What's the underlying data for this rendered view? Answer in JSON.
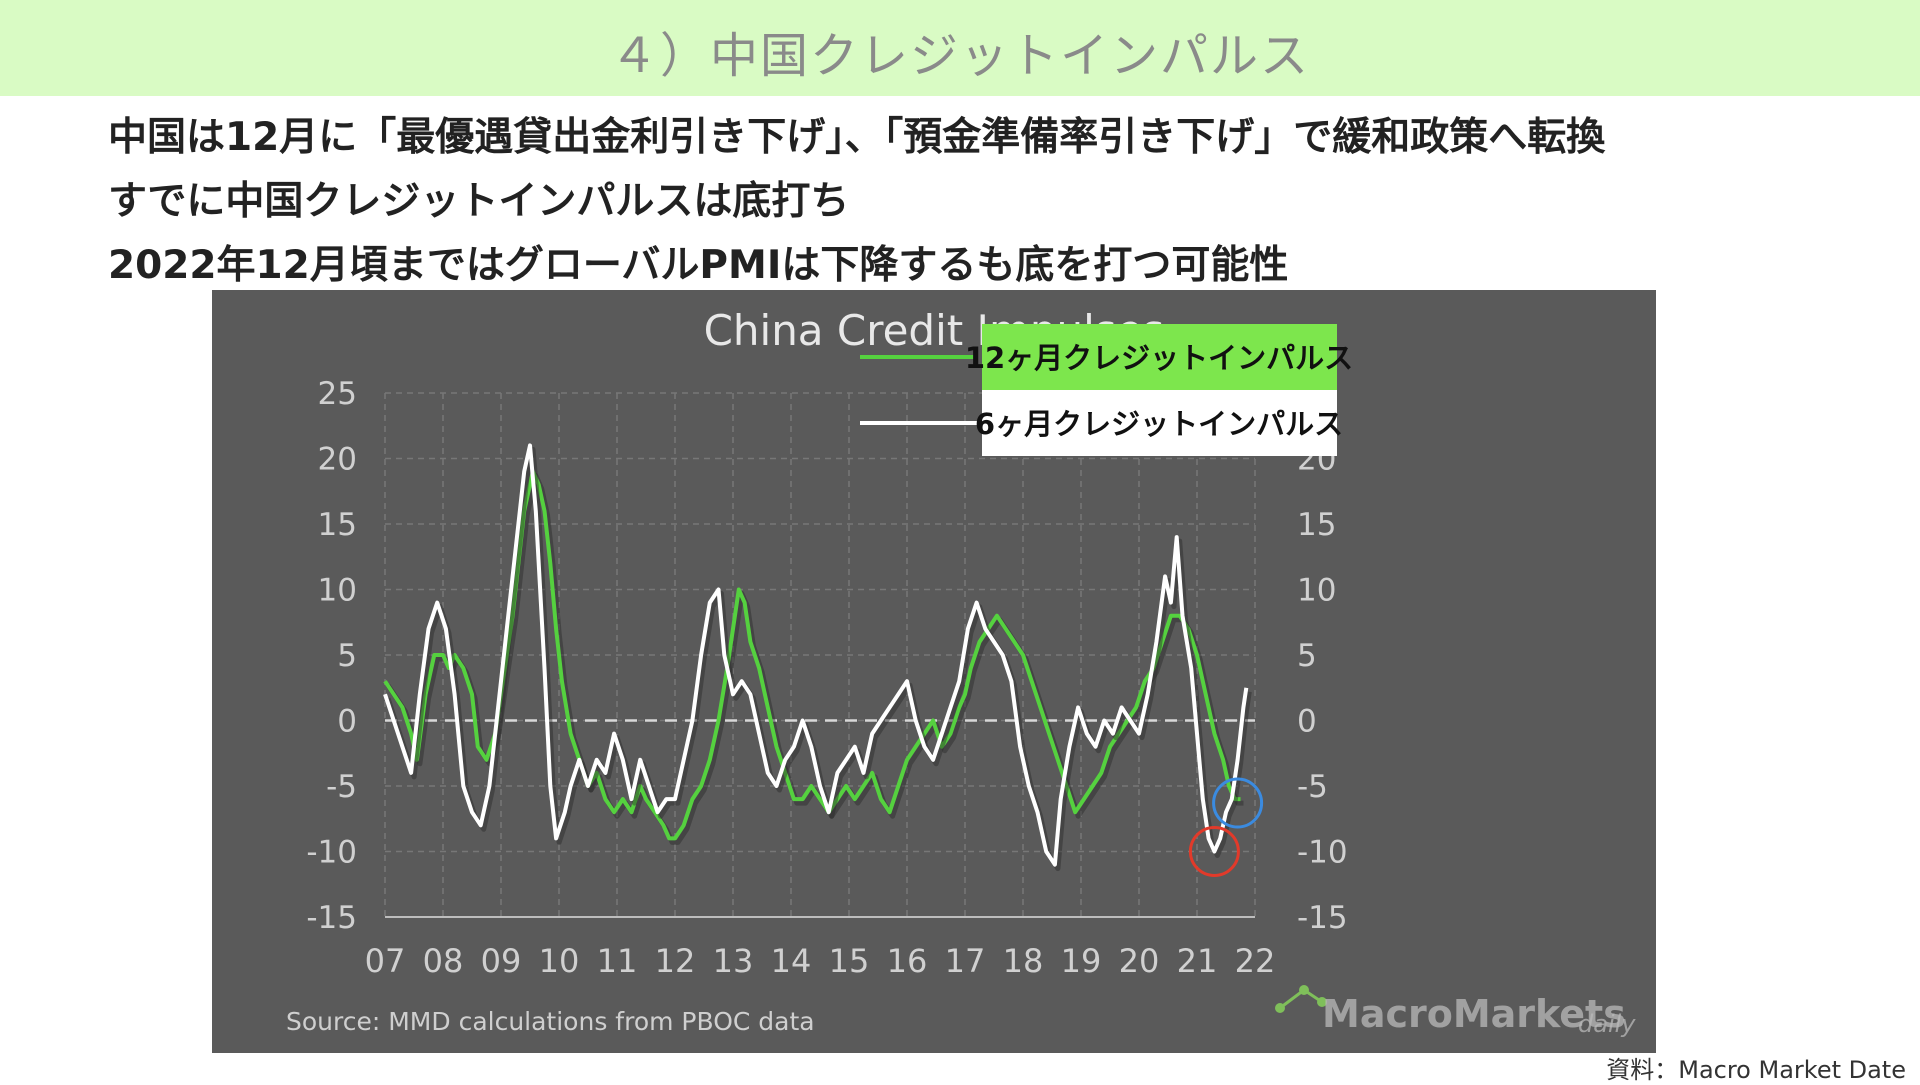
{
  "slide": {
    "title": "４）中国クレジットインパルス",
    "bullets": [
      "中国は12月に「最優遇貸出金利引き下げ」、「預金準備率引き下げ」で緩和政策へ転換",
      "すでに中国クレジットインパルスは底打ち",
      "2022年12月頃まではグローバルPMIは下降するも底を打つ可能性"
    ],
    "source_caption": "資料：Macro Market Date"
  },
  "chart_data": {
    "type": "line",
    "title": "China Credit Impulses",
    "source": "Source:  MMD calculations  from PBOC data",
    "watermark": {
      "brand": "MacroMarkets",
      "suffix": "daily"
    },
    "ylim": [
      -15,
      25
    ],
    "yticks": [
      25,
      20,
      15,
      10,
      5,
      0,
      -5,
      -10,
      -15
    ],
    "xlim": [
      2007,
      2022
    ],
    "xticks": [
      2007,
      2008,
      2009,
      2010,
      2011,
      2012,
      2013,
      2014,
      2015,
      2016,
      2017,
      2018,
      2019,
      2020,
      2021,
      2022
    ],
    "xtick_labels": [
      "07",
      "08",
      "09",
      "10",
      "11",
      "12",
      "13",
      "14",
      "15",
      "16",
      "17",
      "18",
      "19",
      "20",
      "21",
      "22"
    ],
    "grid": true,
    "zero_line": "dashed",
    "legend_position": "top-right",
    "series": [
      {
        "name": "12ヶ月クレジットインパルス",
        "color": "#55d13f",
        "points": [
          [
            2007.0,
            3
          ],
          [
            2007.15,
            2
          ],
          [
            2007.3,
            1
          ],
          [
            2007.45,
            -1
          ],
          [
            2007.55,
            -3
          ],
          [
            2007.7,
            2
          ],
          [
            2007.85,
            5
          ],
          [
            2008.0,
            5
          ],
          [
            2008.1,
            4
          ],
          [
            2008.2,
            5
          ],
          [
            2008.35,
            4
          ],
          [
            2008.5,
            2
          ],
          [
            2008.6,
            -2
          ],
          [
            2008.75,
            -3
          ],
          [
            2008.9,
            -1
          ],
          [
            2009.0,
            2
          ],
          [
            2009.1,
            5
          ],
          [
            2009.2,
            8
          ],
          [
            2009.3,
            12
          ],
          [
            2009.4,
            16
          ],
          [
            2009.5,
            18
          ],
          [
            2009.55,
            19
          ],
          [
            2009.65,
            18
          ],
          [
            2009.75,
            16
          ],
          [
            2009.85,
            12
          ],
          [
            2009.95,
            7
          ],
          [
            2010.05,
            3
          ],
          [
            2010.2,
            -1
          ],
          [
            2010.35,
            -3
          ],
          [
            2010.5,
            -5
          ],
          [
            2010.65,
            -4
          ],
          [
            2010.8,
            -6
          ],
          [
            2010.95,
            -7
          ],
          [
            2011.1,
            -6
          ],
          [
            2011.25,
            -7
          ],
          [
            2011.4,
            -5
          ],
          [
            2011.5,
            -6
          ],
          [
            2011.65,
            -7
          ],
          [
            2011.8,
            -8
          ],
          [
            2011.9,
            -9
          ],
          [
            2012.0,
            -9
          ],
          [
            2012.15,
            -8
          ],
          [
            2012.3,
            -6
          ],
          [
            2012.45,
            -5
          ],
          [
            2012.6,
            -3
          ],
          [
            2012.75,
            0
          ],
          [
            2012.9,
            4
          ],
          [
            2013.0,
            7
          ],
          [
            2013.1,
            10
          ],
          [
            2013.2,
            9
          ],
          [
            2013.3,
            6
          ],
          [
            2013.45,
            4
          ],
          [
            2013.6,
            1
          ],
          [
            2013.75,
            -2
          ],
          [
            2013.9,
            -4
          ],
          [
            2014.05,
            -6
          ],
          [
            2014.2,
            -6
          ],
          [
            2014.35,
            -5
          ],
          [
            2014.5,
            -6
          ],
          [
            2014.65,
            -7
          ],
          [
            2014.8,
            -6
          ],
          [
            2014.95,
            -5
          ],
          [
            2015.1,
            -6
          ],
          [
            2015.25,
            -5
          ],
          [
            2015.4,
            -4
          ],
          [
            2015.55,
            -6
          ],
          [
            2015.7,
            -7
          ],
          [
            2015.85,
            -5
          ],
          [
            2016.0,
            -3
          ],
          [
            2016.15,
            -2
          ],
          [
            2016.3,
            -1
          ],
          [
            2016.45,
            0
          ],
          [
            2016.6,
            -2
          ],
          [
            2016.75,
            -1
          ],
          [
            2016.9,
            1
          ],
          [
            2017.0,
            2
          ],
          [
            2017.1,
            4
          ],
          [
            2017.25,
            6
          ],
          [
            2017.4,
            7
          ],
          [
            2017.55,
            8
          ],
          [
            2017.7,
            7
          ],
          [
            2017.85,
            6
          ],
          [
            2018.0,
            5
          ],
          [
            2018.15,
            3
          ],
          [
            2018.3,
            1
          ],
          [
            2018.45,
            -1
          ],
          [
            2018.6,
            -3
          ],
          [
            2018.75,
            -5
          ],
          [
            2018.9,
            -7
          ],
          [
            2019.05,
            -6
          ],
          [
            2019.2,
            -5
          ],
          [
            2019.35,
            -4
          ],
          [
            2019.5,
            -2
          ],
          [
            2019.65,
            -1
          ],
          [
            2019.8,
            0
          ],
          [
            2019.95,
            1
          ],
          [
            2020.1,
            3
          ],
          [
            2020.25,
            4
          ],
          [
            2020.4,
            6
          ],
          [
            2020.55,
            8
          ],
          [
            2020.7,
            8
          ],
          [
            2020.85,
            7
          ],
          [
            2021.0,
            5
          ],
          [
            2021.15,
            2
          ],
          [
            2021.3,
            -1
          ],
          [
            2021.45,
            -3
          ],
          [
            2021.55,
            -5
          ],
          [
            2021.65,
            -6
          ],
          [
            2021.75,
            -6
          ]
        ]
      },
      {
        "name": "6ヶ月クレジットインパルス",
        "color": "#ffffff",
        "points": [
          [
            2007.0,
            2
          ],
          [
            2007.15,
            0
          ],
          [
            2007.3,
            -2
          ],
          [
            2007.45,
            -4
          ],
          [
            2007.6,
            2
          ],
          [
            2007.75,
            7
          ],
          [
            2007.9,
            9
          ],
          [
            2008.05,
            7
          ],
          [
            2008.2,
            2
          ],
          [
            2008.35,
            -5
          ],
          [
            2008.5,
            -7
          ],
          [
            2008.65,
            -8
          ],
          [
            2008.8,
            -5
          ],
          [
            2008.95,
            1
          ],
          [
            2009.1,
            7
          ],
          [
            2009.25,
            13
          ],
          [
            2009.4,
            19
          ],
          [
            2009.5,
            21
          ],
          [
            2009.6,
            16
          ],
          [
            2009.75,
            4
          ],
          [
            2009.85,
            -5
          ],
          [
            2009.95,
            -9
          ],
          [
            2010.1,
            -7
          ],
          [
            2010.2,
            -5
          ],
          [
            2010.35,
            -3
          ],
          [
            2010.5,
            -5
          ],
          [
            2010.65,
            -3
          ],
          [
            2010.8,
            -4
          ],
          [
            2010.95,
            -1
          ],
          [
            2011.1,
            -3
          ],
          [
            2011.25,
            -6
          ],
          [
            2011.4,
            -3
          ],
          [
            2011.55,
            -5
          ],
          [
            2011.7,
            -7
          ],
          [
            2011.85,
            -6
          ],
          [
            2012.0,
            -6
          ],
          [
            2012.15,
            -3
          ],
          [
            2012.3,
            0
          ],
          [
            2012.45,
            5
          ],
          [
            2012.6,
            9
          ],
          [
            2012.75,
            10
          ],
          [
            2012.85,
            5
          ],
          [
            2013.0,
            2
          ],
          [
            2013.15,
            3
          ],
          [
            2013.3,
            2
          ],
          [
            2013.45,
            -1
          ],
          [
            2013.6,
            -4
          ],
          [
            2013.75,
            -5
          ],
          [
            2013.9,
            -3
          ],
          [
            2014.05,
            -2
          ],
          [
            2014.2,
            0
          ],
          [
            2014.35,
            -2
          ],
          [
            2014.5,
            -5
          ],
          [
            2014.65,
            -7
          ],
          [
            2014.8,
            -4
          ],
          [
            2014.95,
            -3
          ],
          [
            2015.1,
            -2
          ],
          [
            2015.25,
            -4
          ],
          [
            2015.4,
            -1
          ],
          [
            2015.55,
            0
          ],
          [
            2015.7,
            1
          ],
          [
            2015.85,
            2
          ],
          [
            2016.0,
            3
          ],
          [
            2016.15,
            0
          ],
          [
            2016.3,
            -2
          ],
          [
            2016.45,
            -3
          ],
          [
            2016.6,
            -1
          ],
          [
            2016.75,
            1
          ],
          [
            2016.9,
            3
          ],
          [
            2017.05,
            7
          ],
          [
            2017.2,
            9
          ],
          [
            2017.35,
            7
          ],
          [
            2017.5,
            6
          ],
          [
            2017.65,
            5
          ],
          [
            2017.8,
            3
          ],
          [
            2017.95,
            -2
          ],
          [
            2018.1,
            -5
          ],
          [
            2018.25,
            -7
          ],
          [
            2018.4,
            -10
          ],
          [
            2018.55,
            -11
          ],
          [
            2018.65,
            -6
          ],
          [
            2018.8,
            -2
          ],
          [
            2018.95,
            1
          ],
          [
            2019.1,
            -1
          ],
          [
            2019.25,
            -2
          ],
          [
            2019.4,
            0
          ],
          [
            2019.55,
            -1
          ],
          [
            2019.7,
            1
          ],
          [
            2019.85,
            0
          ],
          [
            2020.0,
            -1
          ],
          [
            2020.15,
            2
          ],
          [
            2020.3,
            6
          ],
          [
            2020.45,
            11
          ],
          [
            2020.55,
            9
          ],
          [
            2020.65,
            14
          ],
          [
            2020.75,
            8
          ],
          [
            2020.9,
            4
          ],
          [
            2021.0,
            -1
          ],
          [
            2021.1,
            -6
          ],
          [
            2021.2,
            -9
          ],
          [
            2021.3,
            -10
          ],
          [
            2021.4,
            -9
          ],
          [
            2021.5,
            -7
          ],
          [
            2021.6,
            -6
          ],
          [
            2021.7,
            -3
          ],
          [
            2021.8,
            1
          ],
          [
            2021.85,
            2.5
          ]
        ]
      }
    ],
    "annotations": [
      {
        "kind": "circle",
        "color": "#e23a2a",
        "x": 2021.3,
        "y": -10
      },
      {
        "kind": "circle",
        "color": "#3b8be0",
        "x": 2021.7,
        "y": -6.3
      }
    ]
  }
}
